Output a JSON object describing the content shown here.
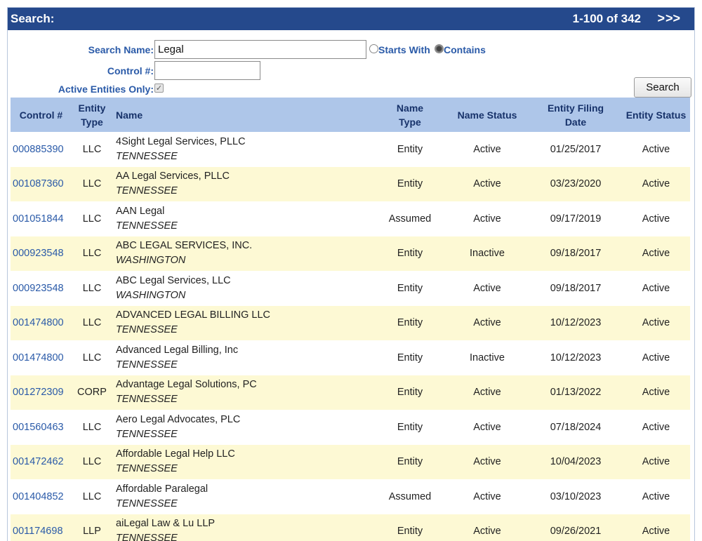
{
  "header": {
    "title": "Search:",
    "range": "1-100 of 342",
    "next": ">",
    "last": ">>"
  },
  "form": {
    "search_name_label": "Search Name:",
    "search_name_value": "Legal",
    "starts_with_label": "Starts With",
    "contains_label": "Contains",
    "selected_mode": "Contains",
    "control_label": "Control #:",
    "control_value": "",
    "active_only_label": "Active Entities Only:",
    "active_only_checked": true,
    "search_button": "Search"
  },
  "table": {
    "columns": {
      "control": "Control #",
      "entity_type_1": "Entity",
      "entity_type_2": "Type",
      "name": "Name",
      "name_type_1": "Name",
      "name_type_2": "Type",
      "name_status": "Name Status",
      "filing_date_1": "Entity Filing",
      "filing_date_2": "Date",
      "entity_status": "Entity Status"
    },
    "rows": [
      {
        "control": "000885390",
        "entity_type": "LLC",
        "name": "4Sight Legal Services, PLLC",
        "state": "TENNESSEE",
        "name_type": "Entity",
        "name_status": "Active",
        "filing_date": "01/25/2017",
        "entity_status": "Active"
      },
      {
        "control": "001087360",
        "entity_type": "LLC",
        "name": "AA Legal Services, PLLC",
        "state": "TENNESSEE",
        "name_type": "Entity",
        "name_status": "Active",
        "filing_date": "03/23/2020",
        "entity_status": "Active"
      },
      {
        "control": "001051844",
        "entity_type": "LLC",
        "name": "AAN Legal",
        "state": "TENNESSEE",
        "name_type": "Assumed",
        "name_status": "Active",
        "filing_date": "09/17/2019",
        "entity_status": "Active"
      },
      {
        "control": "000923548",
        "entity_type": "LLC",
        "name": "ABC LEGAL SERVICES, INC.",
        "state": "WASHINGTON",
        "name_type": "Entity",
        "name_status": "Inactive",
        "filing_date": "09/18/2017",
        "entity_status": "Active"
      },
      {
        "control": "000923548",
        "entity_type": "LLC",
        "name": "ABC Legal Services, LLC",
        "state": "WASHINGTON",
        "name_type": "Entity",
        "name_status": "Active",
        "filing_date": "09/18/2017",
        "entity_status": "Active"
      },
      {
        "control": "001474800",
        "entity_type": "LLC",
        "name": "ADVANCED LEGAL BILLING LLC",
        "state": "TENNESSEE",
        "name_type": "Entity",
        "name_status": "Active",
        "filing_date": "10/12/2023",
        "entity_status": "Active"
      },
      {
        "control": "001474800",
        "entity_type": "LLC",
        "name": "Advanced Legal Billing, Inc",
        "state": "TENNESSEE",
        "name_type": "Entity",
        "name_status": "Inactive",
        "filing_date": "10/12/2023",
        "entity_status": "Active"
      },
      {
        "control": "001272309",
        "entity_type": "CORP",
        "name": "Advantage Legal Solutions, PC",
        "state": "TENNESSEE",
        "name_type": "Entity",
        "name_status": "Active",
        "filing_date": "01/13/2022",
        "entity_status": "Active"
      },
      {
        "control": "001560463",
        "entity_type": "LLC",
        "name": "Aero Legal Advocates, PLC",
        "state": "TENNESSEE",
        "name_type": "Entity",
        "name_status": "Active",
        "filing_date": "07/18/2024",
        "entity_status": "Active"
      },
      {
        "control": "001472462",
        "entity_type": "LLC",
        "name": "Affordable Legal Help LLC",
        "state": "TENNESSEE",
        "name_type": "Entity",
        "name_status": "Active",
        "filing_date": "10/04/2023",
        "entity_status": "Active"
      },
      {
        "control": "001404852",
        "entity_type": "LLC",
        "name": "Affordable Paralegal",
        "state": "TENNESSEE",
        "name_type": "Assumed",
        "name_status": "Active",
        "filing_date": "03/10/2023",
        "entity_status": "Active"
      },
      {
        "control": "001174698",
        "entity_type": "LLP",
        "name": "aiLegal Law & Lu LLP",
        "state": "TENNESSEE",
        "name_type": "Entity",
        "name_status": "Active",
        "filing_date": "09/26/2021",
        "entity_status": "Active"
      }
    ]
  }
}
